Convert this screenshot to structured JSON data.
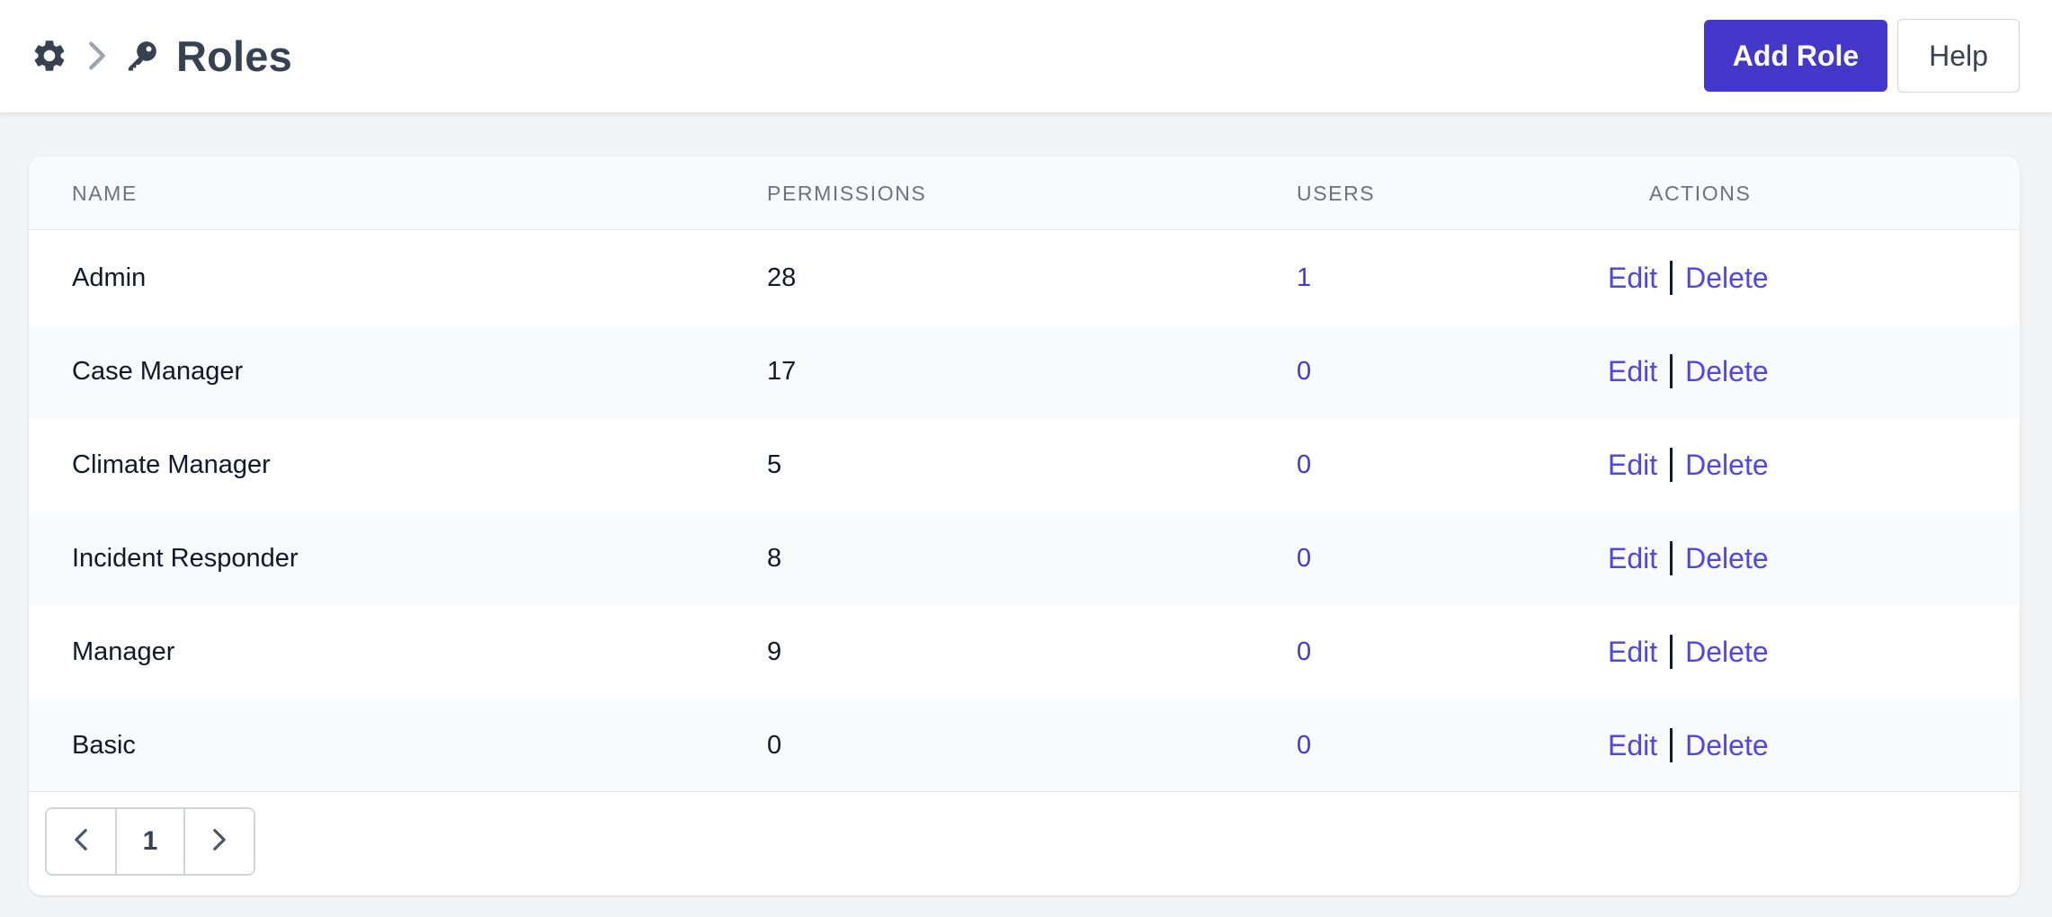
{
  "header": {
    "title": "Roles",
    "add_label": "Add Role",
    "help_label": "Help",
    "icons": [
      "gear-icon",
      "chevron-right-icon",
      "key-icon"
    ]
  },
  "table": {
    "columns": [
      "NAME",
      "PERMISSIONS",
      "USERS",
      "ACTIONS"
    ],
    "rows": [
      {
        "name": "Admin",
        "permissions": "28",
        "users": "1"
      },
      {
        "name": "Case Manager",
        "permissions": "17",
        "users": "0"
      },
      {
        "name": "Climate Manager",
        "permissions": "5",
        "users": "0"
      },
      {
        "name": "Incident Responder",
        "permissions": "8",
        "users": "0"
      },
      {
        "name": "Manager",
        "permissions": "9",
        "users": "0"
      },
      {
        "name": "Basic",
        "permissions": "0",
        "users": "0"
      }
    ],
    "edit_label": "Edit",
    "delete_label": "Delete"
  },
  "pagination": {
    "current_page": "1",
    "icons": [
      "chevron-left-icon",
      "chevron-right-icon"
    ]
  },
  "colors": {
    "accent": "#4338ca",
    "link": "#4f46e5",
    "title": "#374151"
  }
}
